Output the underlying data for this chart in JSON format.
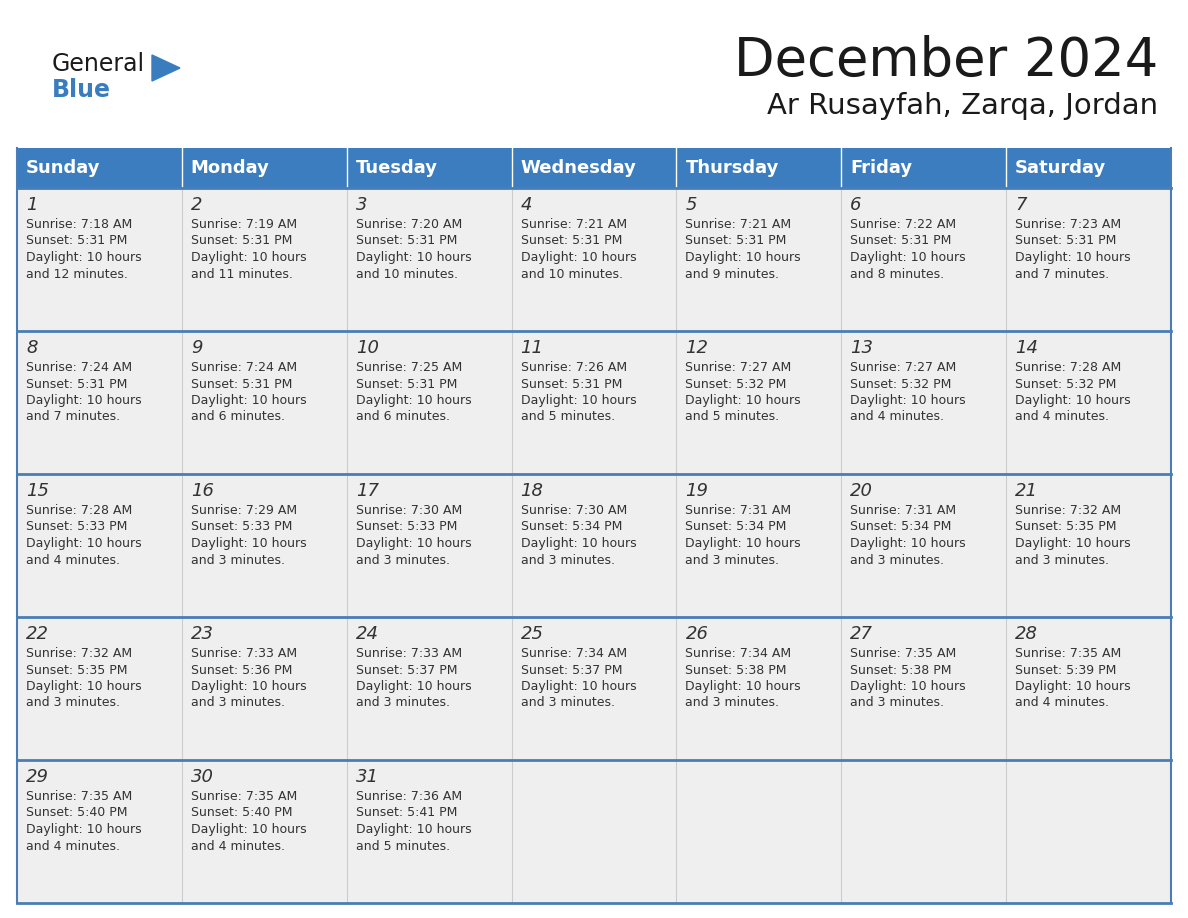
{
  "title": "December 2024",
  "subtitle": "Ar Rusayfah, Zarqa, Jordan",
  "days_of_week": [
    "Sunday",
    "Monday",
    "Tuesday",
    "Wednesday",
    "Thursday",
    "Friday",
    "Saturday"
  ],
  "header_bg_color": "#3b7dbf",
  "header_text_color": "#ffffff",
  "cell_bg_color": "#efefef",
  "day_number_color": "#333333",
  "text_color": "#333333",
  "title_color": "#1a1a1a",
  "subtitle_color": "#1a1a1a",
  "divider_color": "#4a7db5",
  "col_divider_color": "#cccccc",
  "logo_general_color": "#1a1a1a",
  "logo_blue_color": "#3a7dbf",
  "calendar_data": [
    [
      {
        "day": 1,
        "sunrise": "7:18 AM",
        "sunset": "5:31 PM",
        "daylight": "10 hours and 12 minutes"
      },
      {
        "day": 2,
        "sunrise": "7:19 AM",
        "sunset": "5:31 PM",
        "daylight": "10 hours and 11 minutes"
      },
      {
        "day": 3,
        "sunrise": "7:20 AM",
        "sunset": "5:31 PM",
        "daylight": "10 hours and 10 minutes"
      },
      {
        "day": 4,
        "sunrise": "7:21 AM",
        "sunset": "5:31 PM",
        "daylight": "10 hours and 10 minutes"
      },
      {
        "day": 5,
        "sunrise": "7:21 AM",
        "sunset": "5:31 PM",
        "daylight": "10 hours and 9 minutes"
      },
      {
        "day": 6,
        "sunrise": "7:22 AM",
        "sunset": "5:31 PM",
        "daylight": "10 hours and 8 minutes"
      },
      {
        "day": 7,
        "sunrise": "7:23 AM",
        "sunset": "5:31 PM",
        "daylight": "10 hours and 7 minutes"
      }
    ],
    [
      {
        "day": 8,
        "sunrise": "7:24 AM",
        "sunset": "5:31 PM",
        "daylight": "10 hours and 7 minutes"
      },
      {
        "day": 9,
        "sunrise": "7:24 AM",
        "sunset": "5:31 PM",
        "daylight": "10 hours and 6 minutes"
      },
      {
        "day": 10,
        "sunrise": "7:25 AM",
        "sunset": "5:31 PM",
        "daylight": "10 hours and 6 minutes"
      },
      {
        "day": 11,
        "sunrise": "7:26 AM",
        "sunset": "5:31 PM",
        "daylight": "10 hours and 5 minutes"
      },
      {
        "day": 12,
        "sunrise": "7:27 AM",
        "sunset": "5:32 PM",
        "daylight": "10 hours and 5 minutes"
      },
      {
        "day": 13,
        "sunrise": "7:27 AM",
        "sunset": "5:32 PM",
        "daylight": "10 hours and 4 minutes"
      },
      {
        "day": 14,
        "sunrise": "7:28 AM",
        "sunset": "5:32 PM",
        "daylight": "10 hours and 4 minutes"
      }
    ],
    [
      {
        "day": 15,
        "sunrise": "7:28 AM",
        "sunset": "5:33 PM",
        "daylight": "10 hours and 4 minutes"
      },
      {
        "day": 16,
        "sunrise": "7:29 AM",
        "sunset": "5:33 PM",
        "daylight": "10 hours and 3 minutes"
      },
      {
        "day": 17,
        "sunrise": "7:30 AM",
        "sunset": "5:33 PM",
        "daylight": "10 hours and 3 minutes"
      },
      {
        "day": 18,
        "sunrise": "7:30 AM",
        "sunset": "5:34 PM",
        "daylight": "10 hours and 3 minutes"
      },
      {
        "day": 19,
        "sunrise": "7:31 AM",
        "sunset": "5:34 PM",
        "daylight": "10 hours and 3 minutes"
      },
      {
        "day": 20,
        "sunrise": "7:31 AM",
        "sunset": "5:34 PM",
        "daylight": "10 hours and 3 minutes"
      },
      {
        "day": 21,
        "sunrise": "7:32 AM",
        "sunset": "5:35 PM",
        "daylight": "10 hours and 3 minutes"
      }
    ],
    [
      {
        "day": 22,
        "sunrise": "7:32 AM",
        "sunset": "5:35 PM",
        "daylight": "10 hours and 3 minutes"
      },
      {
        "day": 23,
        "sunrise": "7:33 AM",
        "sunset": "5:36 PM",
        "daylight": "10 hours and 3 minutes"
      },
      {
        "day": 24,
        "sunrise": "7:33 AM",
        "sunset": "5:37 PM",
        "daylight": "10 hours and 3 minutes"
      },
      {
        "day": 25,
        "sunrise": "7:34 AM",
        "sunset": "5:37 PM",
        "daylight": "10 hours and 3 minutes"
      },
      {
        "day": 26,
        "sunrise": "7:34 AM",
        "sunset": "5:38 PM",
        "daylight": "10 hours and 3 minutes"
      },
      {
        "day": 27,
        "sunrise": "7:35 AM",
        "sunset": "5:38 PM",
        "daylight": "10 hours and 3 minutes"
      },
      {
        "day": 28,
        "sunrise": "7:35 AM",
        "sunset": "5:39 PM",
        "daylight": "10 hours and 4 minutes"
      }
    ],
    [
      {
        "day": 29,
        "sunrise": "7:35 AM",
        "sunset": "5:40 PM",
        "daylight": "10 hours and 4 minutes"
      },
      {
        "day": 30,
        "sunrise": "7:35 AM",
        "sunset": "5:40 PM",
        "daylight": "10 hours and 4 minutes"
      },
      {
        "day": 31,
        "sunrise": "7:36 AM",
        "sunset": "5:41 PM",
        "daylight": "10 hours and 5 minutes"
      },
      null,
      null,
      null,
      null
    ]
  ]
}
